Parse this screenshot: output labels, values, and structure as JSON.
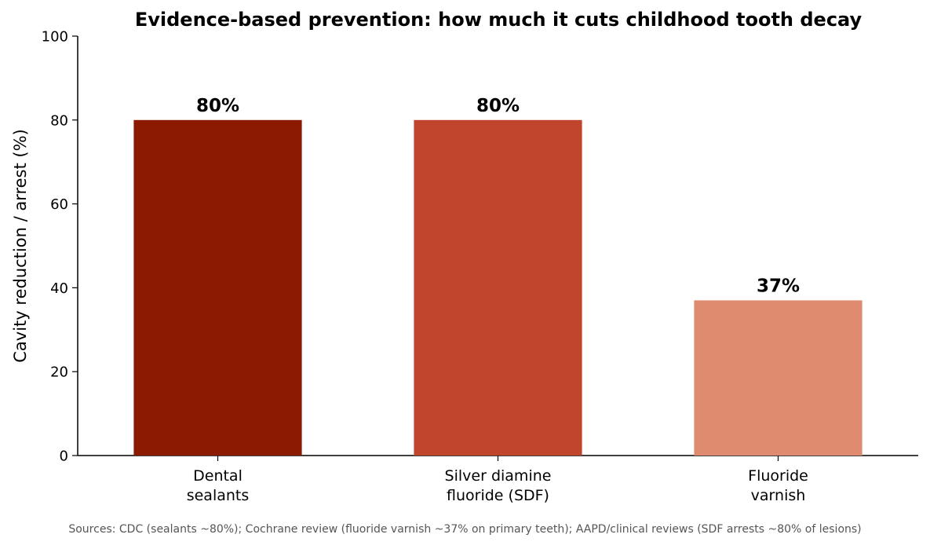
{
  "chart_data": {
    "type": "bar",
    "title": "Evidence-based prevention: how much it cuts childhood tooth decay",
    "xlabel": "",
    "ylabel": "Cavity reduction / arrest (%)",
    "ylim": [
      0,
      100
    ],
    "yticks": [
      0,
      20,
      40,
      60,
      80,
      100
    ],
    "grid": false,
    "categories": [
      [
        "Dental",
        "sealants"
      ],
      [
        "Silver diamine",
        "fluoride (SDF)"
      ],
      [
        "Fluoride",
        "varnish"
      ]
    ],
    "values": [
      80,
      80,
      37
    ],
    "data_labels": [
      "80%",
      "80%",
      "37%"
    ],
    "colors": [
      "#8b1a00",
      "#c0452c",
      "#df8b70"
    ]
  },
  "footer": {
    "source": "Sources: CDC (sealants ~80%); Cochrane review (fluoride varnish ~37% on primary teeth); AAPD/clinical reviews (SDF arrests ~80% of lesions)"
  }
}
